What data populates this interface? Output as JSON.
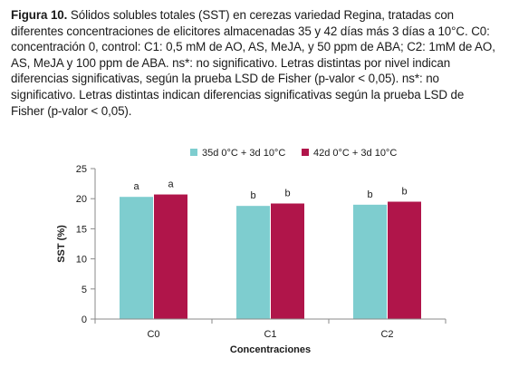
{
  "caption": {
    "label": "Figura 10.",
    "text": "Sólidos solubles totales (SST) en cerezas variedad Regina, tratadas con diferentes concentraciones de elicitores almacenadas 35 y 42 días más 3 días a 10°C. C0: concentración 0, control: C1: 0,5 mM de AO, AS, MeJA, y 50 ppm de ABA; C2: 1mM de AO, AS, MeJA y 100 ppm de ABA. ns*: no significativo. Letras distintas por nivel indican diferencias significativas, según la prueba LSD de Fisher (p-valor < 0,05). ns*: no significativo. Letras distintas indican diferencias significativas según la prueba LSD de Fisher (p-valor < 0,05)."
  },
  "chart_data": {
    "type": "bar",
    "categories": [
      "C0",
      "C1",
      "C2"
    ],
    "series": [
      {
        "name": "35d 0°C + 3d 10°C",
        "values": [
          20.3,
          18.8,
          19.0
        ],
        "labels": [
          "a",
          "b",
          "b"
        ],
        "color": "#7ecdcf"
      },
      {
        "name": "42d 0°C + 3d 10°C",
        "values": [
          20.7,
          19.2,
          19.5
        ],
        "labels": [
          "a",
          "b",
          "b"
        ],
        "color": "#b0154a"
      }
    ],
    "xlabel": "Concentraciones",
    "ylabel": "SST (%)",
    "ylim": [
      0,
      25
    ],
    "yticks": [
      "0",
      "5",
      "10",
      "15",
      "20",
      "25"
    ],
    "legend_position": "top",
    "grid": false
  }
}
